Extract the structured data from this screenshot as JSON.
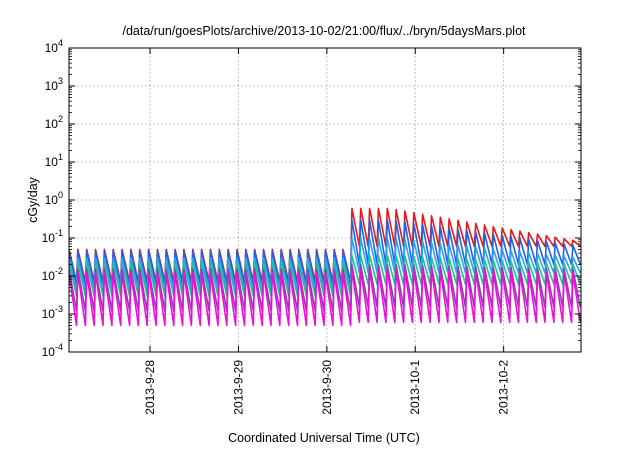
{
  "chart_data": {
    "type": "line",
    "title": "/data/run/goesPlots/archive/2013-10-02/21:00/flux/../bryn/5daysMars.plot",
    "xlabel": "Coordinated Universal Time (UTC)",
    "ylabel": "cGy/day",
    "y_scale": "log",
    "ylim": [
      0.0001,
      10000
    ],
    "xlim": [
      "2013-09-27 02:00",
      "2013-10-02 21:00"
    ],
    "grid": true,
    "legend": "none",
    "x_ticks": [
      "2013-9-28",
      "2013-9-29",
      "2013-9-30",
      "2013-10-1",
      "2013-10-2"
    ],
    "y_ticks": [
      {
        "value": 0.0001,
        "base": "10",
        "exp": "-4"
      },
      {
        "value": 0.001,
        "base": "10",
        "exp": "-3"
      },
      {
        "value": 0.01,
        "base": "10",
        "exp": "-2"
      },
      {
        "value": 0.1,
        "base": "10",
        "exp": "-1"
      },
      {
        "value": 1,
        "base": "10",
        "exp": "0"
      },
      {
        "value": 10,
        "base": "10",
        "exp": "1"
      },
      {
        "value": 100,
        "base": "10",
        "exp": "2"
      },
      {
        "value": 1000,
        "base": "10",
        "exp": "3"
      },
      {
        "value": 10000,
        "base": "10",
        "exp": "4"
      }
    ],
    "oscillation_period_hours": 2.4,
    "step_time": "2013-09-30 06:00",
    "decay_end_time": "2013-09-30 17:00",
    "series": [
      {
        "color": "#e8171b",
        "before_peak": 0.05,
        "before_low": 0.007,
        "after_peak": 0.6,
        "after_end_peak": 0.08,
        "after_low": 0.06
      },
      {
        "color": "#1f62e5",
        "before_peak": 0.045,
        "before_low": 0.006,
        "after_peak": 0.3,
        "after_end_peak": 0.06,
        "after_low": 0.02
      },
      {
        "color": "#2ba4f0",
        "before_peak": 0.03,
        "before_low": 0.004,
        "after_peak": 0.1,
        "after_end_peak": 0.03,
        "after_low": 0.012
      },
      {
        "color": "#1fc48e",
        "before_peak": 0.022,
        "before_low": 0.003,
        "after_peak": 0.035,
        "after_end_peak": 0.02,
        "after_low": 0.006
      },
      {
        "color": "#8a3fb8",
        "before_peak": 0.015,
        "before_low": 0.0012,
        "after_peak": 0.02,
        "after_end_peak": 0.015,
        "after_low": 0.0015
      },
      {
        "color": "#ec10d6",
        "before_peak": 0.012,
        "before_low": 0.0005,
        "after_peak": 0.015,
        "after_end_peak": 0.012,
        "after_low": 0.0006
      }
    ]
  }
}
